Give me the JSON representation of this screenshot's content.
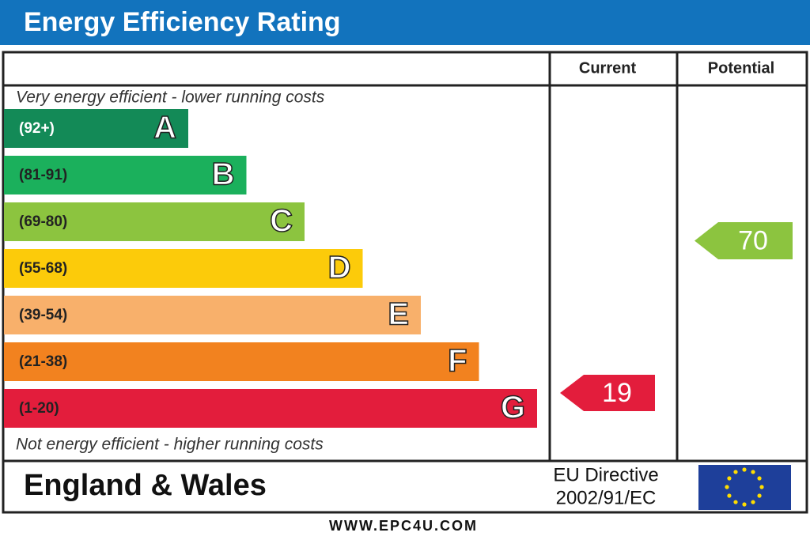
{
  "header": {
    "title": "Energy Efficiency Rating"
  },
  "columns": {
    "current": "Current",
    "potential": "Potential"
  },
  "top_note": "Very energy efficient - lower running costs",
  "bottom_note": "Not energy efficient - higher running costs",
  "bands": [
    {
      "range": "(92+)",
      "letter": "A",
      "color": "#138a57"
    },
    {
      "range": "(81-91)",
      "letter": "B",
      "color": "#1bb05c"
    },
    {
      "range": "(69-80)",
      "letter": "C",
      "color": "#8cc43f"
    },
    {
      "range": "(55-68)",
      "letter": "D",
      "color": "#fccb0a"
    },
    {
      "range": "(39-54)",
      "letter": "E",
      "color": "#f8b06b"
    },
    {
      "range": "(21-38)",
      "letter": "F",
      "color": "#f2821f"
    },
    {
      "range": "(1-20)",
      "letter": "G",
      "color": "#e31d3c"
    }
  ],
  "current": {
    "value": "19",
    "color": "#e31d3c"
  },
  "potential": {
    "value": "70",
    "color": "#8cc43f"
  },
  "footer": {
    "region": "England & Wales",
    "directive": [
      "EU Directive",
      "2002/91/EC"
    ]
  },
  "website": "WWW.EPC4U.COM"
}
